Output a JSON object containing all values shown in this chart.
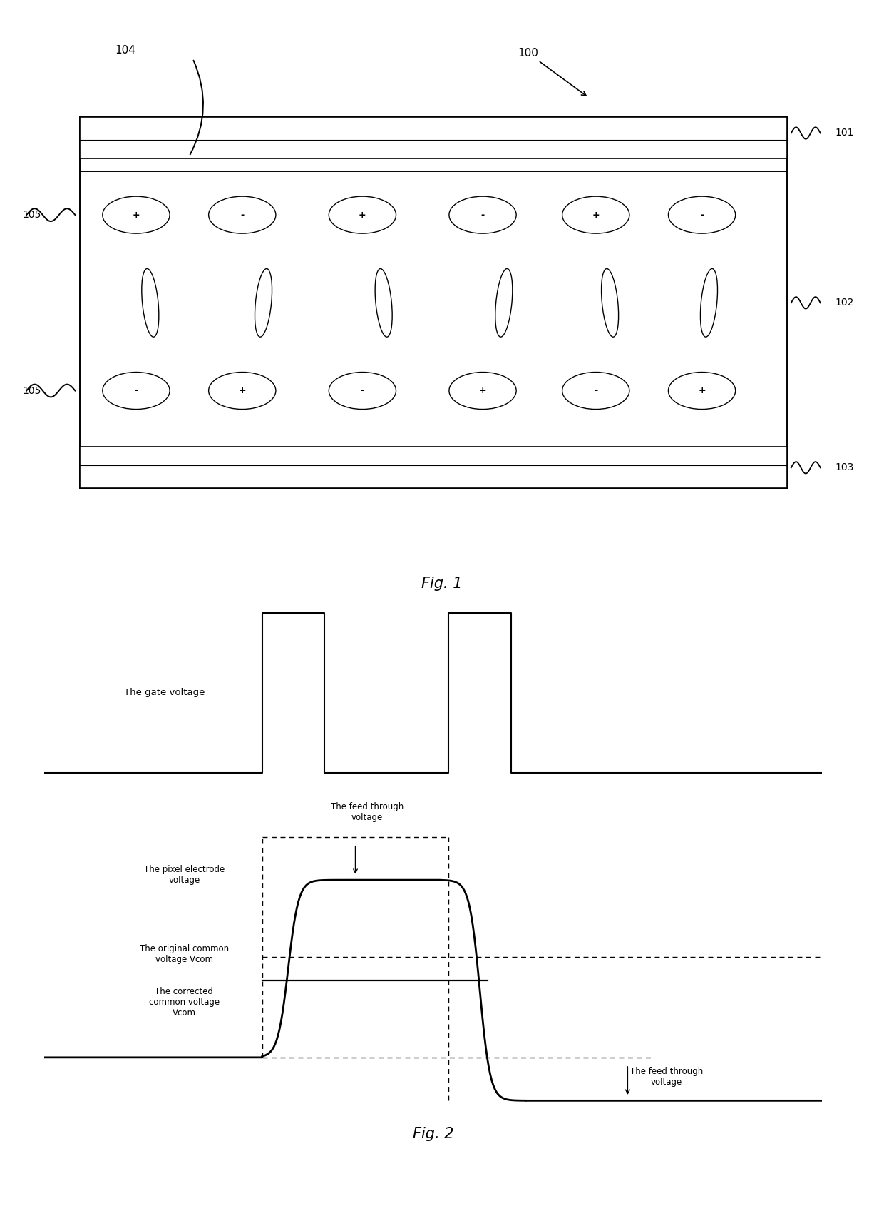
{
  "background_color": "#ffffff",
  "line_color": "#000000",
  "fig1_caption": "Fig. 1",
  "fig2_caption": "Fig. 2",
  "gate_label": "The gate voltage",
  "pixel_label": "The pixel electrode\nvoltage",
  "orig_vcom_label": "The original common\nvoltage Vcom",
  "corr_vcom_label": "The corrected\ncommon voltage\nVcom",
  "feedthrough_label1": "The feed through\nvoltage",
  "feedthrough_label2": "The feed through\nvoltage",
  "label_100": "100",
  "label_101": "101",
  "label_102": "102",
  "label_103": "103",
  "label_104": "104",
  "label_105": "105",
  "top_signs": [
    "+",
    "-",
    "+",
    "-",
    "+",
    "-"
  ],
  "bottom_signs": [
    "-",
    "+",
    "-",
    "+",
    "-",
    "+"
  ]
}
